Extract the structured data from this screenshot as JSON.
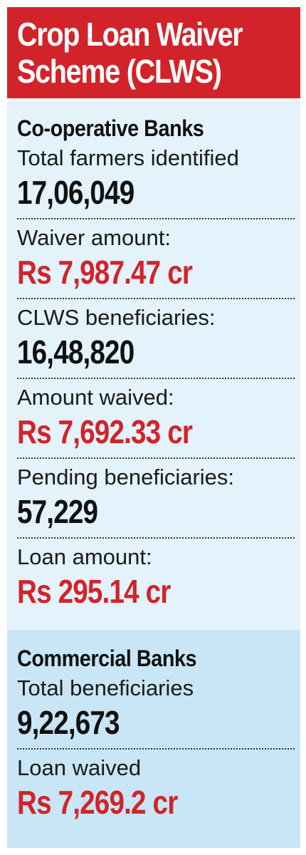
{
  "title": {
    "line1": "Crop Loan Waiver",
    "line2": "Scheme (CLWS)"
  },
  "cooperative": {
    "heading": "Co-operative Banks",
    "items": [
      {
        "label": "Total farmers identified",
        "value": "17,06,049"
      },
      {
        "label": "Waiver amount:",
        "value": "Rs 7,987.47 cr"
      },
      {
        "label": "CLWS beneficiaries:",
        "value": "16,48,820"
      },
      {
        "label": "Amount waived:",
        "value": "Rs 7,692.33 cr"
      },
      {
        "label": "Pending beneficiaries:",
        "value": "57,229"
      },
      {
        "label": "Loan amount:",
        "value": "Rs 295.14 cr"
      }
    ]
  },
  "commercial": {
    "heading": "Commercial Banks",
    "items": [
      {
        "label": "Total beneficiaries",
        "value": "9,22,673"
      },
      {
        "label": "Loan waived",
        "value": "Rs 7,269.2 cr"
      }
    ]
  },
  "colors": {
    "accent_red": "#d2232a",
    "coop_bg": "#e3f2fb",
    "commercial_bg": "#c8e6f5"
  }
}
